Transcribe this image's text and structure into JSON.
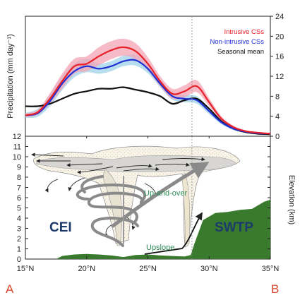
{
  "colors": {
    "intrusive": "#e8202a",
    "intrusive_band": "#f4a4b4",
    "non_intrusive": "#1f2fd6",
    "non_intrusive_band": "#9fd3ea",
    "seasonal": "#111111",
    "terrain": "#3a7a2e",
    "label_region": "#1b3a6b",
    "label_flow": "#2e8b57",
    "corner_letters": "#d9442a"
  },
  "chart_data": [
    {
      "type": "line",
      "title": "",
      "xlabel": "",
      "ylabel": "Precipitation (mm day⁻¹)",
      "y_axis_side": "right",
      "xlim": [
        15,
        35
      ],
      "ylim": [
        0,
        24
      ],
      "yticks": [
        "0",
        "4",
        "8",
        "12",
        "16",
        "20",
        "24"
      ],
      "legend_position": "top-right",
      "x": [
        15,
        16,
        17,
        18,
        19,
        20,
        21,
        22,
        23,
        24,
        25,
        26,
        27,
        28,
        29,
        30,
        31,
        32,
        33,
        34,
        35
      ],
      "series": [
        {
          "name": "Intrusive CSs",
          "values": [
            4.2,
            4.8,
            7.5,
            11.0,
            14.0,
            14.5,
            16.0,
            17.2,
            17.8,
            17.0,
            14.5,
            11.0,
            8.5,
            9.0,
            10.0,
            6.8,
            3.5,
            1.8,
            1.0,
            0.7,
            0.5
          ],
          "upper": [
            4.6,
            5.3,
            8.6,
            12.5,
            15.5,
            16.0,
            17.8,
            19.0,
            19.5,
            18.6,
            15.8,
            12.0,
            9.5,
            10.2,
            11.2,
            7.6,
            4.0,
            2.1,
            1.2,
            0.8,
            0.6
          ],
          "lower": [
            3.8,
            4.3,
            6.5,
            9.5,
            12.5,
            13.0,
            14.2,
            15.4,
            16.1,
            15.4,
            13.2,
            10.0,
            7.5,
            7.8,
            8.8,
            6.0,
            3.0,
            1.5,
            0.8,
            0.6,
            0.4
          ]
        },
        {
          "name": "Non-intrusive CSs",
          "values": [
            4.2,
            4.6,
            7.0,
            10.5,
            13.0,
            14.0,
            13.5,
            14.0,
            15.0,
            15.2,
            13.5,
            10.5,
            8.0,
            7.5,
            7.2,
            5.0,
            2.8,
            1.5,
            0.9,
            0.6,
            0.5
          ],
          "upper": [
            4.7,
            5.5,
            8.3,
            12.0,
            14.5,
            15.5,
            14.5,
            15.0,
            16.1,
            16.3,
            14.5,
            11.3,
            8.7,
            8.3,
            8.0,
            5.6,
            3.2,
            1.8,
            1.0,
            0.7,
            0.6
          ],
          "lower": [
            3.7,
            3.9,
            6.0,
            9.2,
            11.8,
            12.8,
            12.5,
            13.0,
            14.0,
            14.1,
            12.6,
            9.8,
            7.3,
            6.8,
            6.5,
            4.4,
            2.4,
            1.2,
            0.8,
            0.5,
            0.4
          ]
        },
        {
          "name": "Seasonal mean",
          "values": [
            6.0,
            6.0,
            6.5,
            7.5,
            8.5,
            9.0,
            9.5,
            9.5,
            9.8,
            9.3,
            8.8,
            8.0,
            6.5,
            7.2,
            7.5,
            5.5,
            3.0,
            1.5,
            0.8,
            0.5,
            0.4
          ],
          "upper": [
            6.1,
            6.1,
            6.6,
            7.6,
            8.6,
            9.1,
            9.6,
            9.6,
            10.0,
            9.5,
            9.0,
            8.2,
            6.7,
            7.4,
            7.7,
            5.7,
            3.2,
            1.6,
            0.9,
            0.6,
            0.5
          ],
          "lower": [
            5.9,
            5.9,
            6.4,
            7.4,
            8.4,
            8.9,
            9.4,
            9.4,
            9.6,
            9.1,
            8.6,
            7.8,
            6.3,
            7.0,
            7.3,
            5.3,
            2.8,
            1.4,
            0.7,
            0.4,
            0.3
          ]
        }
      ],
      "vertical_reference_x": 28.6
    },
    {
      "type": "diagram",
      "xlabel": "",
      "ylabel": "Elevation (km)",
      "y_axis_side": "right",
      "xlim": [
        15,
        35
      ],
      "ylim": [
        0,
        12
      ],
      "xticks": [
        "15°N",
        "20°N",
        "25°N",
        "30°N",
        "35°N"
      ],
      "yticks": [
        "0",
        "1",
        "2",
        "3",
        "4",
        "5",
        "6",
        "7",
        "8",
        "9",
        "10",
        "11",
        "12"
      ],
      "terrain": {
        "x": [
          15,
          17.5,
          18,
          19,
          20,
          21,
          22,
          23,
          24,
          25,
          26,
          27,
          28,
          28.5,
          28.8,
          29.5,
          30.5,
          31.5,
          32.5,
          33.5,
          34.5,
          35
        ],
        "elevation": [
          0,
          0,
          0.3,
          0.45,
          0.5,
          0.45,
          0.35,
          0.2,
          0.4,
          0.45,
          0.35,
          0.3,
          0.25,
          0.4,
          1.5,
          3.8,
          4.5,
          4.6,
          4.8,
          4.9,
          5.6,
          5.8
        ]
      },
      "labels": {
        "region_left": "CEI",
        "region_right": "SWTP",
        "flow_top": "Up-and-over",
        "flow_bottom": "Upslope"
      }
    }
  ],
  "corner_labels": {
    "left": "A",
    "right": "B"
  }
}
